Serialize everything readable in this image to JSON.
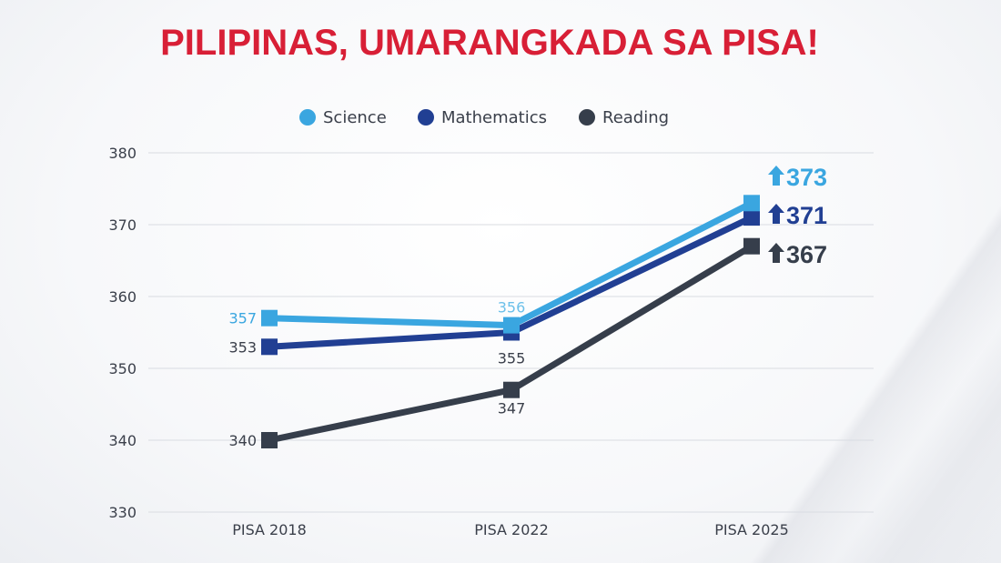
{
  "chart_data": {
    "type": "line",
    "title": "PILIPINAS, UMARANGKADA SA PISA!",
    "categories": [
      "PISA 2018",
      "PISA 2022",
      "PISA 2025"
    ],
    "ylim": [
      330,
      380
    ],
    "yticks": [
      330,
      340,
      350,
      360,
      370,
      380
    ],
    "grid": true,
    "legend_position": "top-center",
    "series": [
      {
        "name": "Science",
        "values": [
          357,
          356,
          373
        ],
        "color": "#3aa6e0",
        "labels": [
          "357",
          "356",
          "373"
        ],
        "end_label_icon": "up-arrow-icon"
      },
      {
        "name": "Mathematics",
        "values": [
          353,
          355,
          371
        ],
        "color": "#213f93",
        "labels": [
          "353",
          "355",
          "371"
        ],
        "end_label_icon": "up-arrow-icon"
      },
      {
        "name": "Reading",
        "values": [
          340,
          347,
          367
        ],
        "color": "#363e4b",
        "labels": [
          "340",
          "347",
          "367"
        ],
        "end_label_icon": "up-arrow-icon"
      }
    ]
  }
}
